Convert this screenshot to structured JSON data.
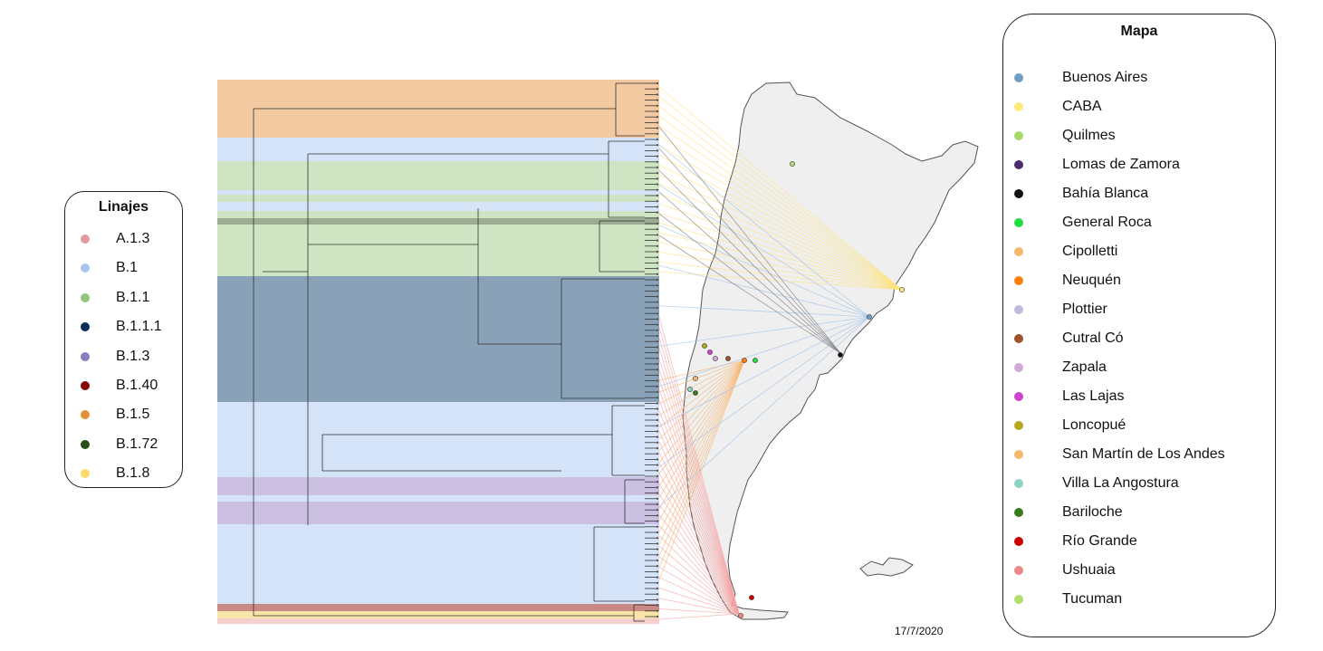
{
  "lineage_legend": {
    "title": "Linajes",
    "items": [
      {
        "label": "A.1.3",
        "color": "#e89a9a"
      },
      {
        "label": "B.1",
        "color": "#a9c4f0"
      },
      {
        "label": "B.1.1",
        "color": "#93c47d"
      },
      {
        "label": "B.1.1.1",
        "color": "#0b2f5a"
      },
      {
        "label": "B.1.3",
        "color": "#8e7cc3"
      },
      {
        "label": "B.1.40",
        "color": "#8b0000"
      },
      {
        "label": "B.1.5",
        "color": "#e69138"
      },
      {
        "label": "B.1.72",
        "color": "#274e13"
      },
      {
        "label": "B.1.8",
        "color": "#ffd966"
      }
    ]
  },
  "map_legend": {
    "title": "Mapa",
    "items": [
      {
        "label": "Buenos Aires",
        "color": "#6f9ec4"
      },
      {
        "label": "CABA",
        "color": "#ffe97a"
      },
      {
        "label": "Quilmes",
        "color": "#a6d96a"
      },
      {
        "label": "Lomas de Zamora",
        "color": "#4b2a6e"
      },
      {
        "label": "Bahía Blanca",
        "color": "#111111"
      },
      {
        "label": "General Roca",
        "color": "#22dd44"
      },
      {
        "label": "Cipolletti",
        "color": "#f5b96b"
      },
      {
        "label": "Neuquén",
        "color": "#ff7f0e"
      },
      {
        "label": "Plottier",
        "color": "#c2b8db"
      },
      {
        "label": "Cutral Có",
        "color": "#a0522d"
      },
      {
        "label": "Zapala",
        "color": "#d0a9d8"
      },
      {
        "label": "Las Lajas",
        "color": "#cc44cc"
      },
      {
        "label": "Loncopué",
        "color": "#b5a81c"
      },
      {
        "label": "San Martín de Los Andes",
        "color": "#f5b96b"
      },
      {
        "label": "Villa La Angostura",
        "color": "#8fd3c7"
      },
      {
        "label": "Bariloche",
        "color": "#3a7a1e"
      },
      {
        "label": "Río Grande",
        "color": "#cc0000"
      },
      {
        "label": "Ushuaia",
        "color": "#ee8888"
      },
      {
        "label": "Tucuman",
        "color": "#b2df6a"
      }
    ]
  },
  "date_label": "17/7/2020"
}
